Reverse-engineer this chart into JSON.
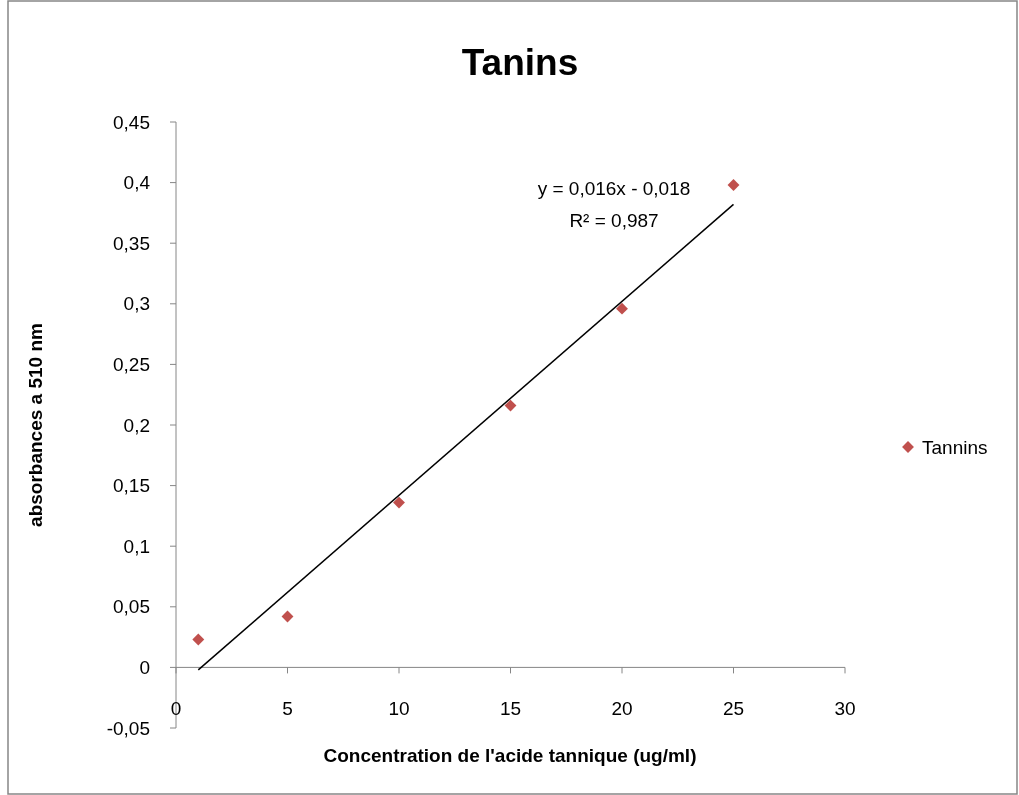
{
  "chart_data": {
    "type": "scatter",
    "title": "Tanins",
    "xlabel": "Concentration de l'acide tannique (ug/ml)",
    "ylabel": "absorbances  a 510 nm",
    "xlim": [
      0,
      30
    ],
    "xticks": [
      0,
      5,
      10,
      15,
      20,
      25,
      30
    ],
    "ylim": [
      -0.05,
      0.45
    ],
    "yticks": [
      {
        "value": -0.05,
        "label": "-0,05"
      },
      {
        "value": 0,
        "label": "0"
      },
      {
        "value": 0.05,
        "label": "0,05"
      },
      {
        "value": 0.1,
        "label": "0,1"
      },
      {
        "value": 0.15,
        "label": "0,15"
      },
      {
        "value": 0.2,
        "label": "0,2"
      },
      {
        "value": 0.25,
        "label": "0,25"
      },
      {
        "value": 0.3,
        "label": "0,3"
      },
      {
        "value": 0.35,
        "label": "0,35"
      },
      {
        "value": 0.4,
        "label": "0,4"
      },
      {
        "value": 0.45,
        "label": "0,45"
      }
    ],
    "grid": false,
    "legend": "right",
    "marker": "diamond",
    "series": [
      {
        "name": "Tannins",
        "color": "#c0504d",
        "x": [
          1,
          5,
          10,
          15,
          20,
          25
        ],
        "values": [
          0.023,
          0.042,
          0.136,
          0.216,
          0.296,
          0.398
        ]
      },
      {
        "type": "line",
        "color": "#000000",
        "marker": "none",
        "x": [
          1,
          25
        ],
        "values": [
          -0.002,
          0.382
        ]
      }
    ],
    "annotations": [
      "y = 0,016x - 0,018",
      "R² = 0,987"
    ]
  }
}
